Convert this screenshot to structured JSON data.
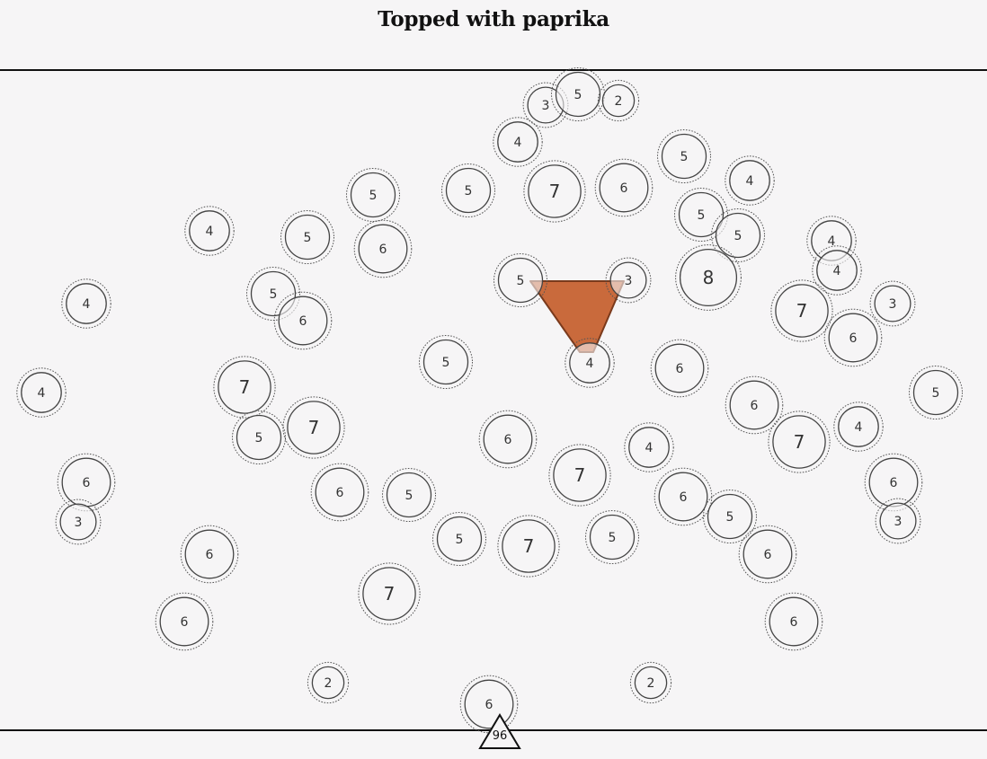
{
  "title": "Topped with paprika",
  "accent_color": "#c96a3c",
  "marker_label": "96",
  "nodes": [
    {
      "n": 3
    },
    {
      "n": 5
    },
    {
      "n": 2
    },
    {
      "n": 4
    },
    {
      "n": 5
    },
    {
      "n": 4
    },
    {
      "n": 5
    },
    {
      "n": 7
    },
    {
      "n": 6
    },
    {
      "n": 5
    },
    {
      "n": 5
    },
    {
      "n": 5
    },
    {
      "n": 4
    },
    {
      "n": 5
    },
    {
      "n": 6
    },
    {
      "n": 4
    },
    {
      "n": 4
    },
    {
      "n": 5
    },
    {
      "n": 3
    },
    {
      "n": 8
    },
    {
      "n": 4
    },
    {
      "n": 5
    },
    {
      "n": 6
    },
    {
      "n": 7
    },
    {
      "n": 3
    },
    {
      "n": 6
    },
    {
      "n": 5
    },
    {
      "n": 4
    },
    {
      "n": 6
    },
    {
      "n": 4
    },
    {
      "n": 7
    },
    {
      "n": 5
    },
    {
      "n": 7
    },
    {
      "n": 6
    },
    {
      "n": 6
    },
    {
      "n": 4
    },
    {
      "n": 7
    },
    {
      "n": 4
    },
    {
      "n": 6
    },
    {
      "n": 7
    },
    {
      "n": 6
    },
    {
      "n": 5
    },
    {
      "n": 6
    },
    {
      "n": 3
    },
    {
      "n": 5
    },
    {
      "n": 3
    },
    {
      "n": 5
    },
    {
      "n": 7
    },
    {
      "n": 5
    },
    {
      "n": 6
    },
    {
      "n": 5
    },
    {
      "n": 7
    },
    {
      "n": 6
    },
    {
      "n": 6
    },
    {
      "n": 6
    },
    {
      "n": 2
    },
    {
      "n": 2
    },
    {
      "n": 6
    }
  ]
}
